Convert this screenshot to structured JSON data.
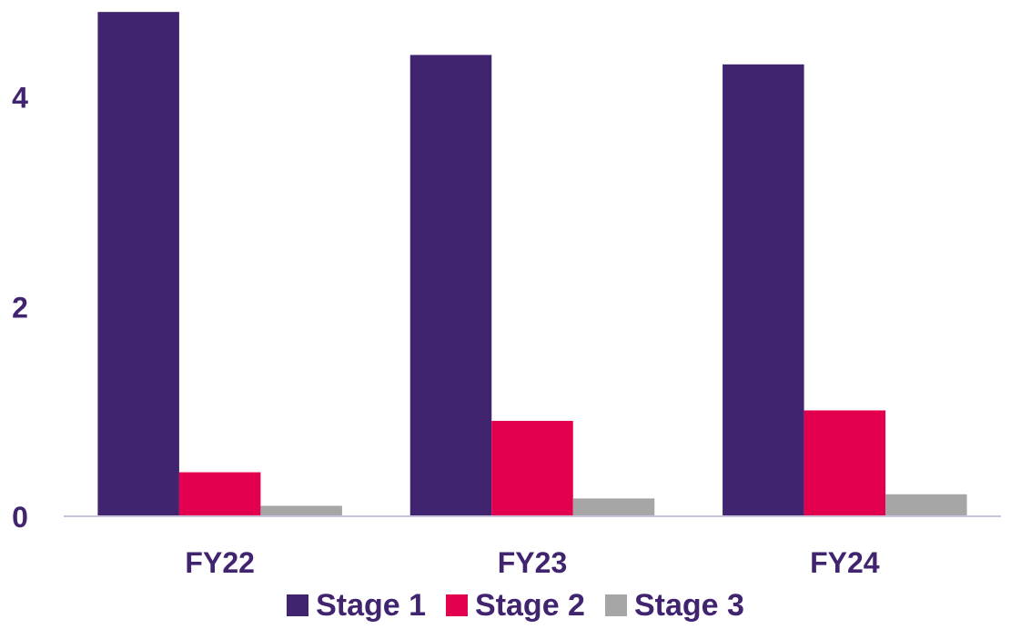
{
  "colors": {
    "text": "#41246f",
    "axis": "#c9c3dd"
  },
  "chart_data": {
    "type": "bar",
    "categories": [
      "FY22",
      "FY23",
      "FY24"
    ],
    "series": [
      {
        "name": "Stage 1",
        "color": "#41246f",
        "values": [
          4.81,
          4.4,
          4.31
        ]
      },
      {
        "name": "Stage 2",
        "color": "#e3004f",
        "values": [
          0.42,
          0.91,
          1.01
        ]
      },
      {
        "name": "Stage 3",
        "color": "#a6a6a6",
        "values": [
          0.1,
          0.17,
          0.21
        ]
      }
    ],
    "yticks": [
      "0",
      "2",
      "4"
    ],
    "ylim": [
      0,
      4.82
    ],
    "legend_position": "bottom",
    "grid": false,
    "title": "",
    "xlabel": "",
    "ylabel": ""
  }
}
